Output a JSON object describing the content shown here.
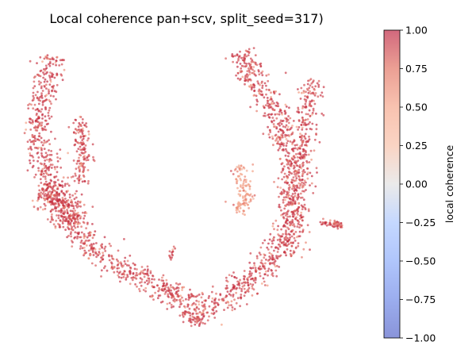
{
  "chart_data": {
    "type": "scatter",
    "title": "Local coherence pan+scv, split_seed=317)",
    "axes_visible": false,
    "colorbar": {
      "label": "local coherence",
      "colormap": "coolwarm",
      "range": [
        -1.0,
        1.0
      ],
      "ticks": [
        "1.00",
        "0.75",
        "0.50",
        "0.25",
        "0.00",
        "−0.25",
        "−0.50",
        "−0.75",
        "−1.00"
      ],
      "tick_values": [
        1.0,
        0.75,
        0.5,
        0.25,
        0.0,
        -0.25,
        -0.5,
        -0.75,
        -1.0
      ],
      "alpha": 0.6
    },
    "series": [
      {
        "marker": "dot",
        "approx_point_count": 3000,
        "value_range_observed": [
          0.1,
          1.0
        ],
        "dominant_value": 0.9
      }
    ]
  }
}
